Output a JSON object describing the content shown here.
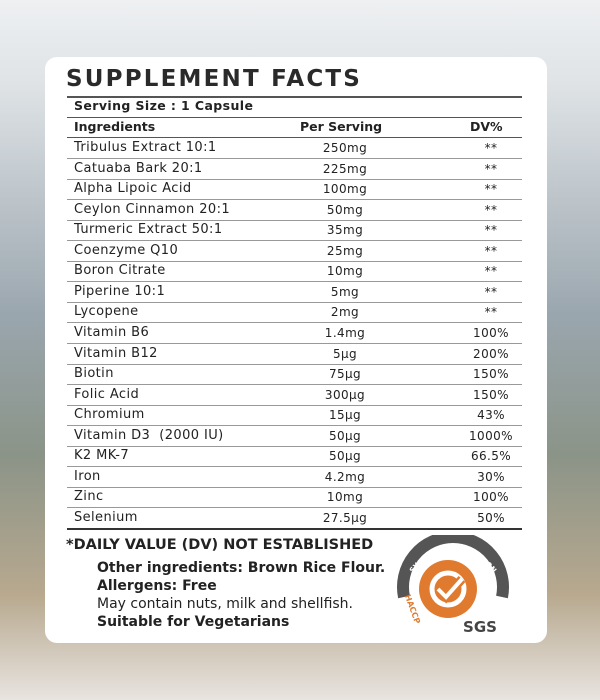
{
  "title": "SUPPLEMENT FACTS",
  "serving_size": "Serving Size : 1 Capsule",
  "table": {
    "header": [
      "Ingredients",
      "Per Serving",
      "DV%"
    ],
    "rows": [
      [
        "Tribulus Extract 10:1",
        "250mg",
        "**"
      ],
      [
        "Catuaba Bark 20:1",
        "225mg",
        "**"
      ],
      [
        "Alpha Lipoic Acid",
        "100mg",
        "**"
      ],
      [
        "Ceylon Cinnamon 20:1",
        "50mg",
        "**"
      ],
      [
        "Turmeric Extract 50:1",
        "35mg",
        "**"
      ],
      [
        "Coenzyme Q10",
        "25mg",
        "**"
      ],
      [
        "Boron Citrate",
        "10mg",
        "**"
      ],
      [
        "Piperine 10:1",
        "5mg",
        "**"
      ],
      [
        "Lycopene",
        "2mg",
        "**"
      ],
      [
        "Vitamin B6",
        "1.4mg",
        "100%"
      ],
      [
        "Vitamin B12",
        "5µg",
        "200%"
      ],
      [
        "Biotin",
        "75µg",
        "150%"
      ],
      [
        "Folic Acid",
        "300µg",
        "150%"
      ],
      [
        "Chromium",
        "15µg",
        "43%"
      ],
      [
        "Vitamin D3  (2000 IU)",
        "50µg",
        "1000%"
      ],
      [
        "K2 MK-7",
        "50µg",
        "66.5%"
      ],
      [
        "Iron",
        "4.2mg",
        "30%"
      ],
      [
        "Zinc",
        "10mg",
        "100%"
      ],
      [
        "Selenium",
        "27.5µg",
        "50%"
      ]
    ]
  },
  "footnote": "*DAILY VALUE (DV) NOT ESTABLISHED",
  "other_ingredients": "Other ingredients: Brown Rice Flour.",
  "allergens": "Allergens: Free",
  "warning": "May contain nuts, milk and shellfish.",
  "suitable": "Suitable for Vegetarians",
  "badge": {
    "arc_text": "SYSTEM CERTIFICATION",
    "side_text": "HACCP",
    "brand": "SGS"
  }
}
